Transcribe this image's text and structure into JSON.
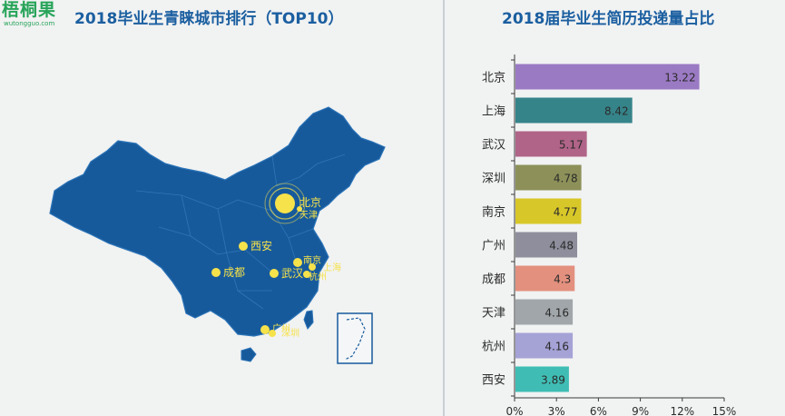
{
  "brand": {
    "name": "梧桐果",
    "url": "wutongguo.com"
  },
  "map": {
    "title": "2018毕业生青睐城市排行（TOP10）",
    "highlight_color": "#f6e24a",
    "cities": [
      {
        "name": "北京",
        "rank": 1
      },
      {
        "name": "天津"
      },
      {
        "name": "西安"
      },
      {
        "name": "成都"
      },
      {
        "name": "武汉"
      },
      {
        "name": "南京"
      },
      {
        "name": "上海"
      },
      {
        "name": "杭州"
      },
      {
        "name": "广州"
      },
      {
        "name": "深圳"
      }
    ]
  },
  "chart_data": {
    "type": "bar",
    "orientation": "horizontal",
    "title": "2018届毕业生简历投递量占比",
    "categories": [
      "北京",
      "上海",
      "武汉",
      "深圳",
      "南京",
      "广州",
      "成都",
      "天津",
      "杭州",
      "西安"
    ],
    "values": [
      13.22,
      8.42,
      5.17,
      4.78,
      4.77,
      4.48,
      4.3,
      4.16,
      4.16,
      3.89
    ],
    "data_labels": [
      "13.22",
      "8.42",
      "5.17",
      "4.78",
      "4.77",
      "4.48",
      "4.3",
      "4.16",
      "4.16",
      "3.89"
    ],
    "colors": [
      "#9b7ac4",
      "#35848a",
      "#b06488",
      "#8d9159",
      "#d8c728",
      "#8e8e9c",
      "#e3907e",
      "#a0a6aa",
      "#a5a2d6",
      "#3fbdb4"
    ],
    "xlim": [
      0,
      15
    ],
    "xticks": [
      0,
      3,
      6,
      9,
      12,
      15
    ],
    "xtick_labels": [
      "0%",
      "3%",
      "6%",
      "9%",
      "12%",
      "15%"
    ],
    "xlabel": "",
    "ylabel": "",
    "grid": false
  }
}
